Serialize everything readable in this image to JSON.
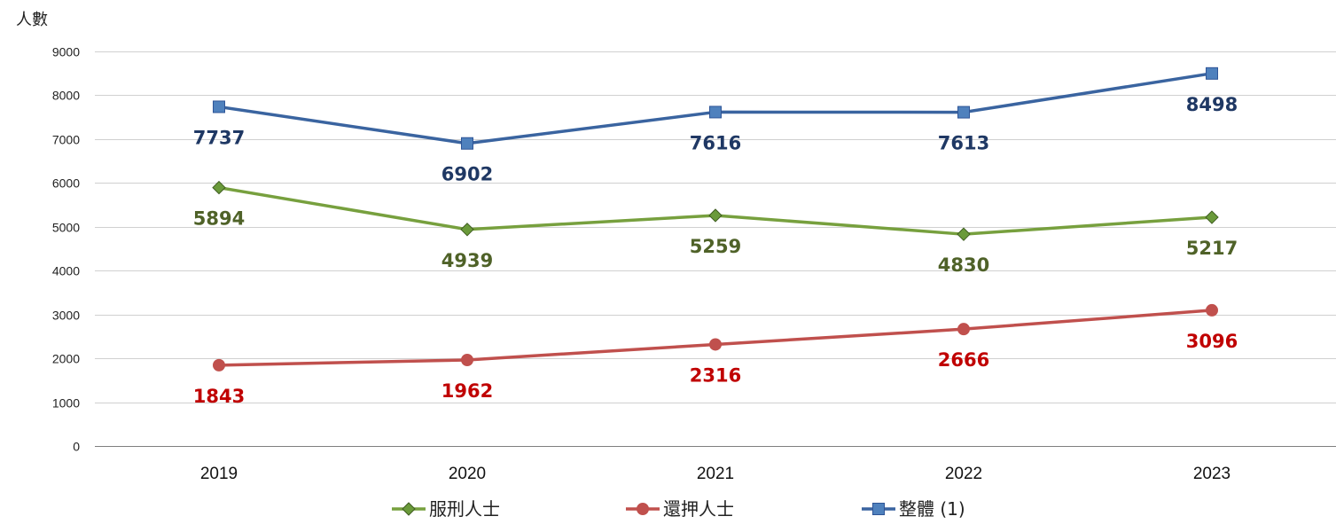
{
  "chart_data": {
    "type": "line",
    "title": "",
    "ylabel": "人數",
    "xlabel": "",
    "categories": [
      "2019",
      "2020",
      "2021",
      "2022",
      "2023"
    ],
    "ylim": [
      0,
      9000
    ],
    "yticks": [
      0,
      1000,
      2000,
      3000,
      4000,
      5000,
      6000,
      7000,
      8000,
      9000
    ],
    "grid": true,
    "legend_position": "bottom",
    "series": [
      {
        "name": "服刑人士",
        "values": [
          5894,
          4939,
          5259,
          4830,
          5217
        ],
        "line_color": "#77A03E",
        "label_color": "#4F6228",
        "marker": "diamond",
        "marker_color": "#6A9A3A",
        "marker_edge": "#3E5C20"
      },
      {
        "name": "還押人士",
        "values": [
          1843,
          1962,
          2316,
          2666,
          3096
        ],
        "line_color": "#C0504D",
        "label_color": "#C00000",
        "marker": "circle",
        "marker_color": "#C0504D",
        "marker_edge": "#C0504D"
      },
      {
        "name": "整體 (1)",
        "values": [
          7737,
          6902,
          7616,
          7613,
          8498
        ],
        "line_color": "#3A64A0",
        "label_color": "#1F3864",
        "marker": "square",
        "marker_color": "#4F81BD",
        "marker_edge": "#2F5597"
      }
    ]
  }
}
